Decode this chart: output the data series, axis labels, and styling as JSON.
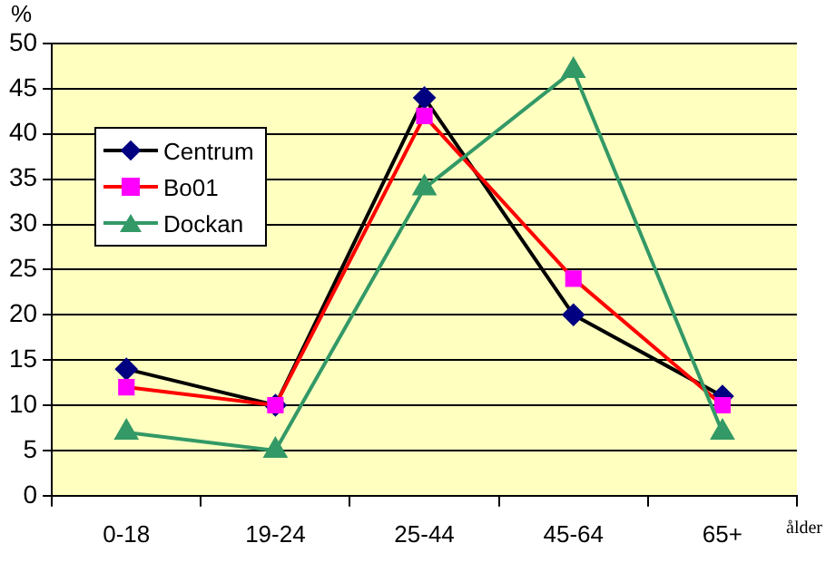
{
  "chart_data": {
    "type": "line",
    "xlabel": "ålder",
    "ylabel": "%",
    "categories": [
      "0-18",
      "19-24",
      "25-44",
      "45-64",
      "65+"
    ],
    "series": [
      {
        "name": "Centrum",
        "color": "#000000",
        "colors": [
          "#000080",
          "#000080",
          "#000080",
          "#000080",
          "#000080"
        ],
        "marker": "diamond",
        "values": [
          14,
          10,
          44,
          20,
          11
        ]
      },
      {
        "name": "Bo01",
        "color": "#ff0000",
        "colors": [
          "#ff00ff",
          "#ff00ff",
          "#ff00ff",
          "#ff00ff",
          "#ff00ff"
        ],
        "marker": "square",
        "values": [
          12,
          10,
          42,
          24,
          10
        ]
      },
      {
        "name": "Dockan",
        "color": "#339966",
        "colors": [
          "#339966",
          "#339966",
          "#339966",
          "#339966",
          "#339966"
        ],
        "marker": "triangle",
        "values": [
          7,
          5,
          34,
          47,
          7
        ]
      }
    ],
    "ylim": [
      0,
      50
    ],
    "yticks": [
      0,
      5,
      10,
      15,
      20,
      25,
      30,
      35,
      40,
      45,
      50
    ],
    "grid": "y",
    "legend": "top left",
    "line_style": "solid"
  }
}
